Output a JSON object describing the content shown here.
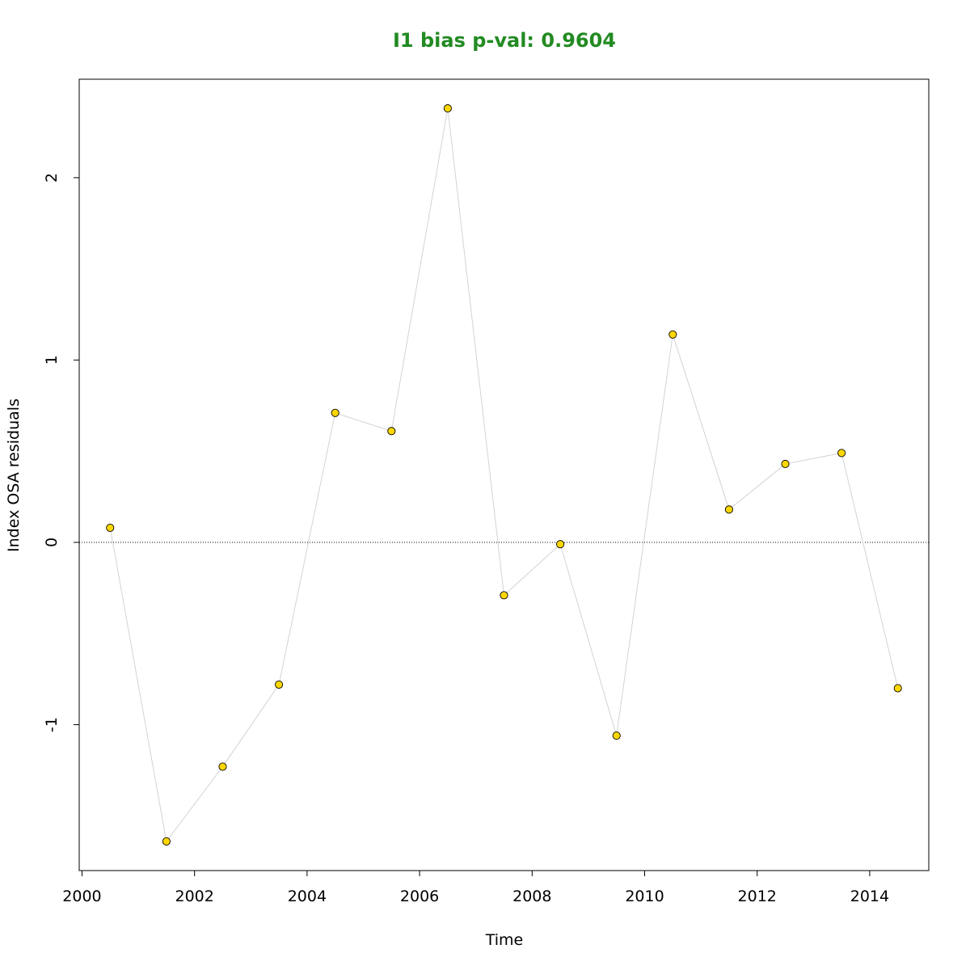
{
  "chart_data": {
    "type": "line",
    "title": "I1 bias p-val: 0.9604",
    "title_color": "#228B22",
    "xlabel": "Time",
    "ylabel": "Index OSA residuals",
    "xlim": [
      1999.95,
      2015.05
    ],
    "ylim": [
      -1.8,
      2.54
    ],
    "x_ticks": [
      2000,
      2002,
      2004,
      2006,
      2008,
      2010,
      2012,
      2014
    ],
    "y_ticks": [
      -1,
      0,
      1,
      2
    ],
    "reference_line": {
      "y": 0,
      "style": "dotted"
    },
    "line_color": "#d3d3d3",
    "point_color": "#FFD700",
    "point_edge_color": "#000000",
    "grid": false,
    "series": [
      {
        "x": [
          2000.5,
          2001.5,
          2002.5,
          2003.5,
          2004.5,
          2005.5,
          2006.5,
          2007.5,
          2008.5,
          2009.5,
          2010.5,
          2011.5,
          2012.5,
          2013.5,
          2014.5
        ],
        "y": [
          0.08,
          -1.64,
          -1.23,
          -0.78,
          0.71,
          0.61,
          2.38,
          -0.29,
          -0.01,
          -1.06,
          1.14,
          0.18,
          0.43,
          0.49,
          -0.8
        ]
      }
    ]
  }
}
